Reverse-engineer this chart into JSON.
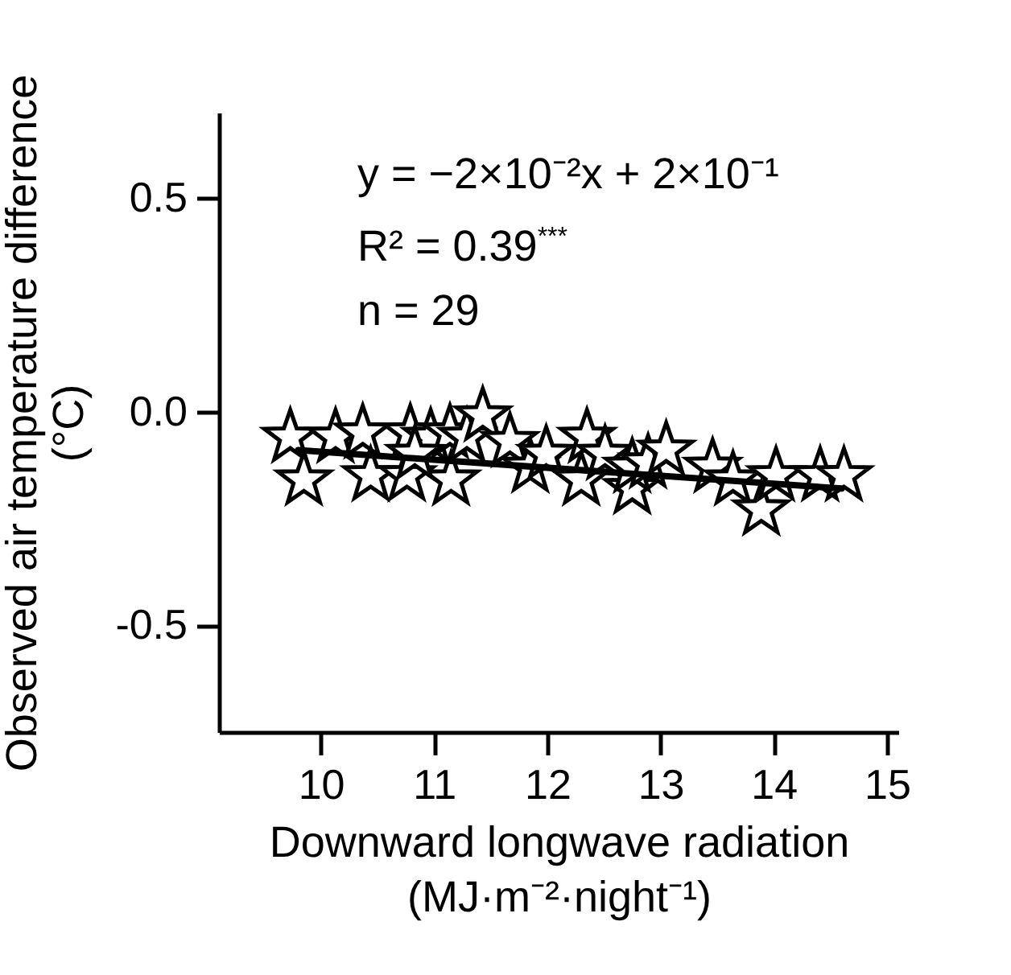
{
  "chart_data": {
    "type": "scatter",
    "xlabel": "Downward longwave radiation\n(MJ·m⁻²·night⁻¹)",
    "ylabel": "Observed air temperature difference\n(°C)",
    "xlim": [
      9.1,
      15.1
    ],
    "xticks": [
      10,
      11,
      12,
      13,
      14,
      15
    ],
    "ylim": [
      -0.75,
      0.7
    ],
    "yticks": [
      {
        "value": 0.5,
        "label": "0.5"
      },
      {
        "value": 0,
        "label": "0.0"
      },
      {
        "value": -0.5,
        "label": "-0.5"
      }
    ],
    "grid": false,
    "annotations": [
      "y = −2×10⁻²x + 2×10⁻¹",
      "R² = 0.39$^{***}$",
      "n = 29"
    ],
    "series": [
      {
        "color": "#000000",
        "marker": "star",
        "x": [
          9.73,
          9.85,
          10.13,
          10.37,
          10.44,
          10.79,
          10.76,
          10.97,
          11.14,
          11.15,
          11.29,
          11.43,
          11.67,
          10.83,
          11.85,
          11.99,
          12.35,
          12.3,
          12.51,
          12.75,
          12.75,
          12.89,
          13.05,
          13.46,
          13.64,
          13.89,
          14.02,
          14.41,
          14.62
        ],
        "values": [
          -0.06,
          -0.16,
          -0.06,
          -0.05,
          -0.15,
          -0.05,
          -0.15,
          -0.06,
          -0.05,
          -0.16,
          -0.06,
          -0.01,
          -0.07,
          -0.1,
          -0.13,
          -0.1,
          -0.06,
          -0.16,
          -0.1,
          -0.18,
          -0.13,
          -0.12,
          -0.09,
          -0.13,
          -0.16,
          -0.23,
          -0.15,
          -0.15,
          -0.15
        ]
      },
      {
        "type": "line",
        "color": "#000000",
        "x": [
          9.8,
          14.6
        ],
        "values": [
          -0.09,
          -0.18
        ]
      }
    ]
  }
}
